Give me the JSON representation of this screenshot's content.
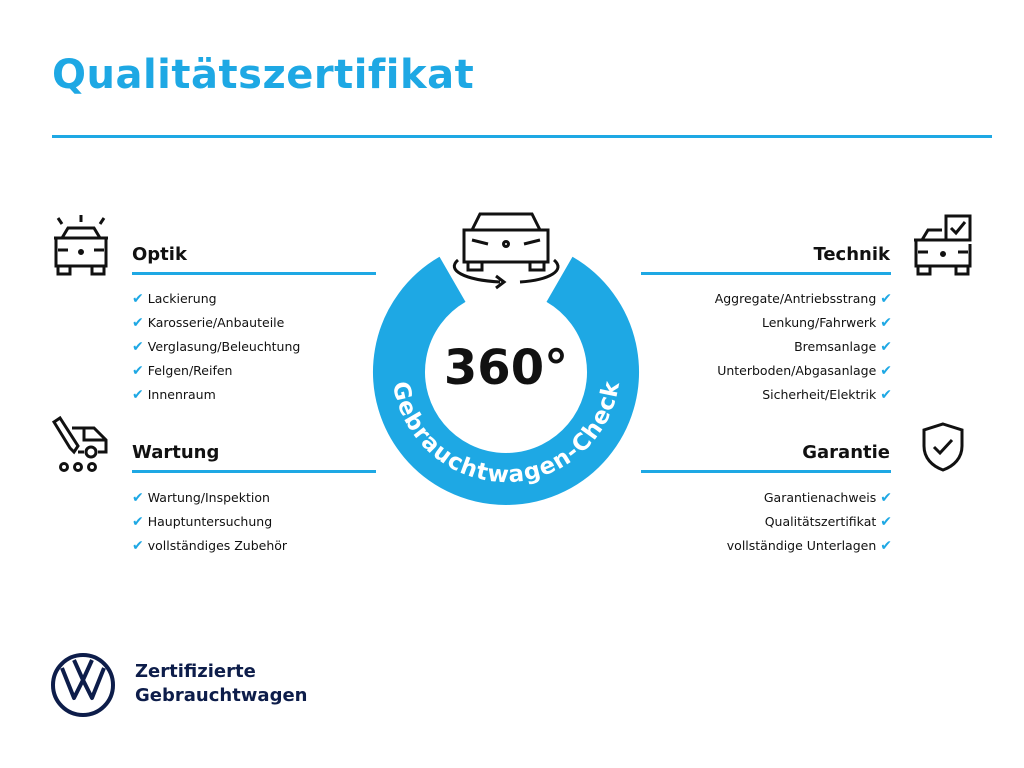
{
  "title": "Qualitätszertifikat",
  "center": {
    "value": "360°",
    "ring_text": "Gebrauchtwagen-Check",
    "icon": "car-rotate-icon"
  },
  "sections": [
    {
      "title": "Optik",
      "icon": "car-lights-icon",
      "items": [
        "Lackierung",
        "Karosserie/Anbauteile",
        "Verglasung/Beleuchtung",
        "Felgen/Reifen",
        "Innenraum"
      ]
    },
    {
      "title": "Wartung",
      "icon": "service-van-icon",
      "items": [
        "Wartung/Inspektion",
        "Hauptuntersuchung",
        "vollständiges Zubehör"
      ]
    },
    {
      "title": "Technik",
      "icon": "car-checklist-icon",
      "items": [
        "Aggregate/Antriebsstrang",
        "Lenkung/Fahrwerk",
        "Bremsanlage",
        "Unterboden/Abgasanlage",
        "Sicherheit/Elektrik"
      ]
    },
    {
      "title": "Garantie",
      "icon": "shield-check-icon",
      "items": [
        "Garantienachweis",
        "Qualitätszertifikat",
        "vollständige Unterlagen"
      ]
    }
  ],
  "check_mark": "✔",
  "brand": {
    "line1": "Zertifizierte",
    "line2": "Gebrauchtwagen",
    "logo": "VW"
  },
  "colors": {
    "accent": "#1ea8e4",
    "brand_dark": "#0d1d4a"
  }
}
